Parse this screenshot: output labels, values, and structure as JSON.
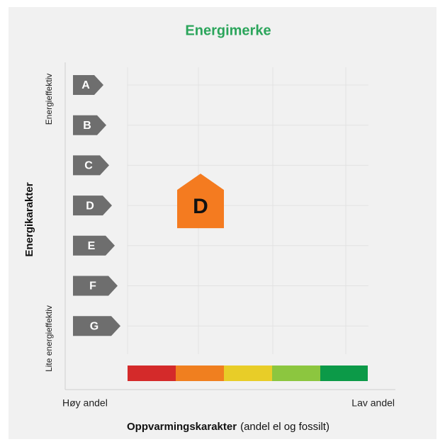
{
  "title": "Energimerke",
  "y_axis": {
    "title": "Energikarakter",
    "top_label": "Energieffektiv",
    "bottom_label": "Lite energieffektiv"
  },
  "grades": [
    "A",
    "B",
    "C",
    "D",
    "E",
    "F",
    "G"
  ],
  "rating": "D",
  "x_axis": {
    "left_label": "Høy andel",
    "right_label": "Lav andel",
    "title": "Oppvarmingskarakter",
    "subtitle": "(andel el og fossilt)"
  }
}
